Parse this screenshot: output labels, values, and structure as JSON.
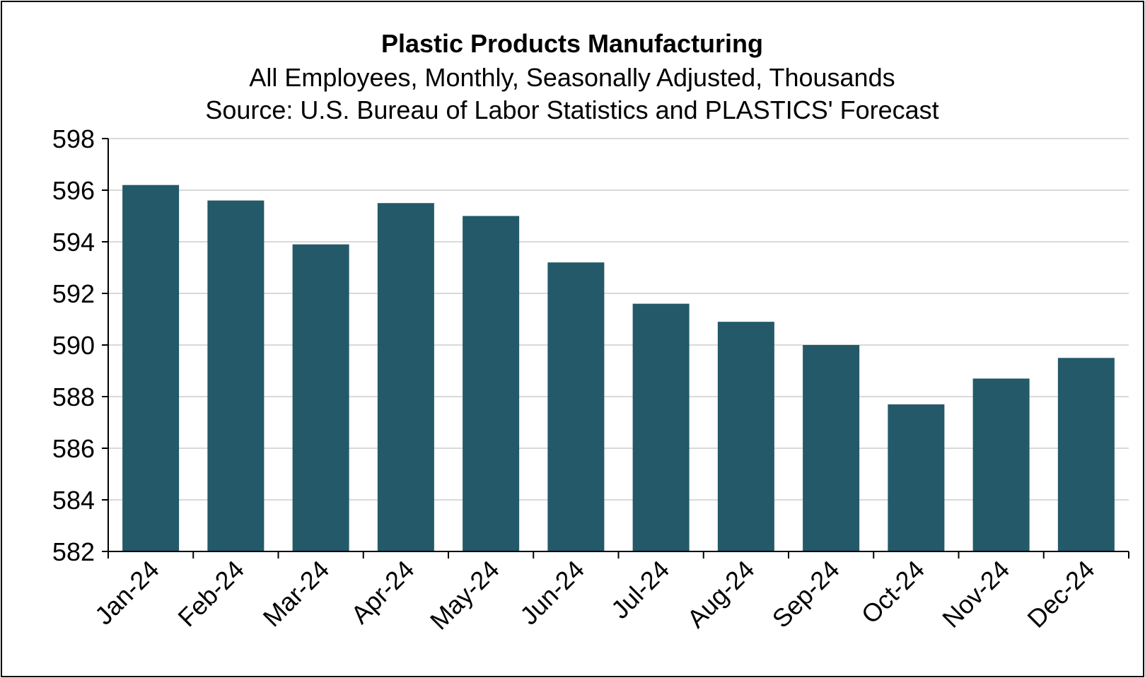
{
  "chart_data": {
    "type": "bar",
    "title": "Plastic Products Manufacturing",
    "subtitle_lines": [
      "All Employees, Monthly, Seasonally Adjusted, Thousands",
      "Source: U.S. Bureau of Labor Statistics and PLASTICS' Forecast"
    ],
    "categories": [
      "Jan-24",
      "Feb-24",
      "Mar-24",
      "Apr-24",
      "May-24",
      "Jun-24",
      "Jul-24",
      "Aug-24",
      "Sep-24",
      "Oct-24",
      "Nov-24",
      "Dec-24"
    ],
    "values": [
      596.2,
      595.6,
      593.9,
      595.5,
      595.0,
      593.2,
      591.6,
      590.9,
      590.0,
      587.7,
      588.7,
      589.5
    ],
    "ylim": [
      582,
      598
    ],
    "yticks": [
      "582",
      "584",
      "586",
      "588",
      "590",
      "592",
      "594",
      "596",
      "598"
    ],
    "xlabel": "",
    "ylabel": "",
    "grid": true,
    "bar_color": "#235969",
    "grid_color": "#d9d9d9"
  }
}
